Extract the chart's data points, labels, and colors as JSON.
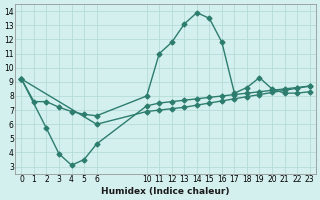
{
  "bg_color": "#d4f0ee",
  "line_color": "#2d7d6f",
  "grid_color": "#b0d8d4",
  "xlabel": "Humidex (Indice chaleur)",
  "xlim": [
    -0.5,
    23.5
  ],
  "ylim": [
    2.5,
    14.5
  ],
  "xticks": [
    0,
    1,
    2,
    3,
    4,
    5,
    6,
    10,
    11,
    12,
    13,
    14,
    15,
    16,
    17,
    18,
    19,
    20,
    21,
    22,
    23
  ],
  "yticks": [
    3,
    4,
    5,
    6,
    7,
    8,
    9,
    10,
    11,
    12,
    13,
    14
  ],
  "line1_x": [
    0,
    1,
    2,
    3,
    4,
    5,
    6,
    10,
    11,
    12,
    13,
    14,
    15,
    16,
    17,
    18,
    19,
    20,
    21,
    22,
    23
  ],
  "line1_y": [
    9.2,
    7.6,
    7.6,
    7.2,
    6.9,
    6.7,
    6.6,
    8.0,
    11.0,
    11.8,
    13.1,
    13.9,
    13.5,
    11.8,
    8.2,
    8.6,
    9.3,
    8.5,
    8.2,
    8.2,
    8.3
  ],
  "line2_x": [
    0,
    2,
    3,
    4,
    5,
    6,
    10,
    11,
    12,
    13,
    14,
    15,
    16,
    17,
    18,
    19,
    20,
    21,
    22,
    23
  ],
  "line2_y": [
    9.2,
    5.7,
    3.9,
    3.1,
    3.5,
    4.6,
    7.3,
    7.5,
    7.6,
    7.7,
    7.8,
    7.9,
    8.0,
    8.1,
    8.2,
    8.3,
    8.4,
    8.5,
    8.6,
    8.7
  ],
  "line3_x": [
    0,
    6,
    10,
    11,
    12,
    13,
    14,
    15,
    16,
    17,
    18,
    19,
    20,
    21,
    22,
    23
  ],
  "line3_y": [
    9.2,
    6.0,
    6.9,
    7.0,
    7.1,
    7.2,
    7.35,
    7.5,
    7.65,
    7.8,
    7.95,
    8.1,
    8.25,
    8.4,
    8.55,
    8.7
  ]
}
